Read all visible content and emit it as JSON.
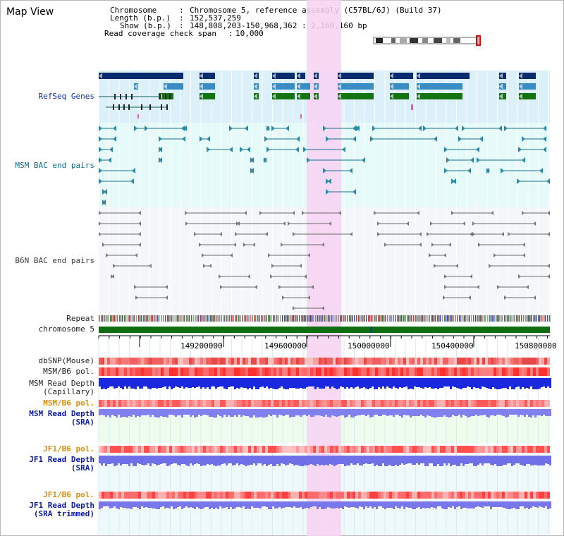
{
  "page": {
    "title": "Map View"
  },
  "info": {
    "chromosome_key": "Chromosome",
    "chromosome_value": "Chromosome 5, reference assembly (C57BL/6J) (Build 37)",
    "length_key": "Length (b.p.)",
    "length_value": "152,537,259",
    "show_key": "Show (b.p.)",
    "show_value": "148,808,203-150,968,362 : 2,160,160 bp",
    "coverage_key": "Read coverage check span",
    "coverage_value": "10,000"
  },
  "tracks": {
    "refseq": "RefSeq Genes",
    "msm_bac": "MSM BAC end pairs",
    "b6n_bac": "B6N BAC end pairs",
    "repeat": "Repeat",
    "chromosome": "chromosome 5",
    "dbsnp": "dbSNP(Mouse)",
    "msm_b6_pol": "MSM/B6 pol.",
    "msm_depth_cap_1": "MSM Read Depth",
    "msm_depth_cap_2": "(Capillary)",
    "msm_b6_pol_sra": "MSM/B6 pol.",
    "msm_depth_sra_1": "MSM Read Depth",
    "msm_depth_sra_2": "(SRA)",
    "jf1_pol_1": "JF1/B6 pol.",
    "jf1_depth_1": "JF1 Read Depth",
    "jf1_depth_2": "(SRA)",
    "jf1_pol_2": "JF1/B6 pol.",
    "jf1_trim_1": "JF1 Read Depth",
    "jf1_trim_2": "(SRA trimmed)"
  },
  "axis": {
    "ticks": [
      "149200000",
      "149600000",
      "150000000",
      "150400000",
      "150800000"
    ]
  },
  "colors": {
    "highlight": "#f7d2f2",
    "refseq_bg": "#dcf0fa",
    "msm_bg": "#e6fafa",
    "b6n_bg": "#f4f6fa",
    "chromosome_band": "#0f6e0f",
    "gene_dark": "#0a2c6e",
    "gene_mid": "#3a8cc4",
    "gene_green": "#137313"
  }
}
